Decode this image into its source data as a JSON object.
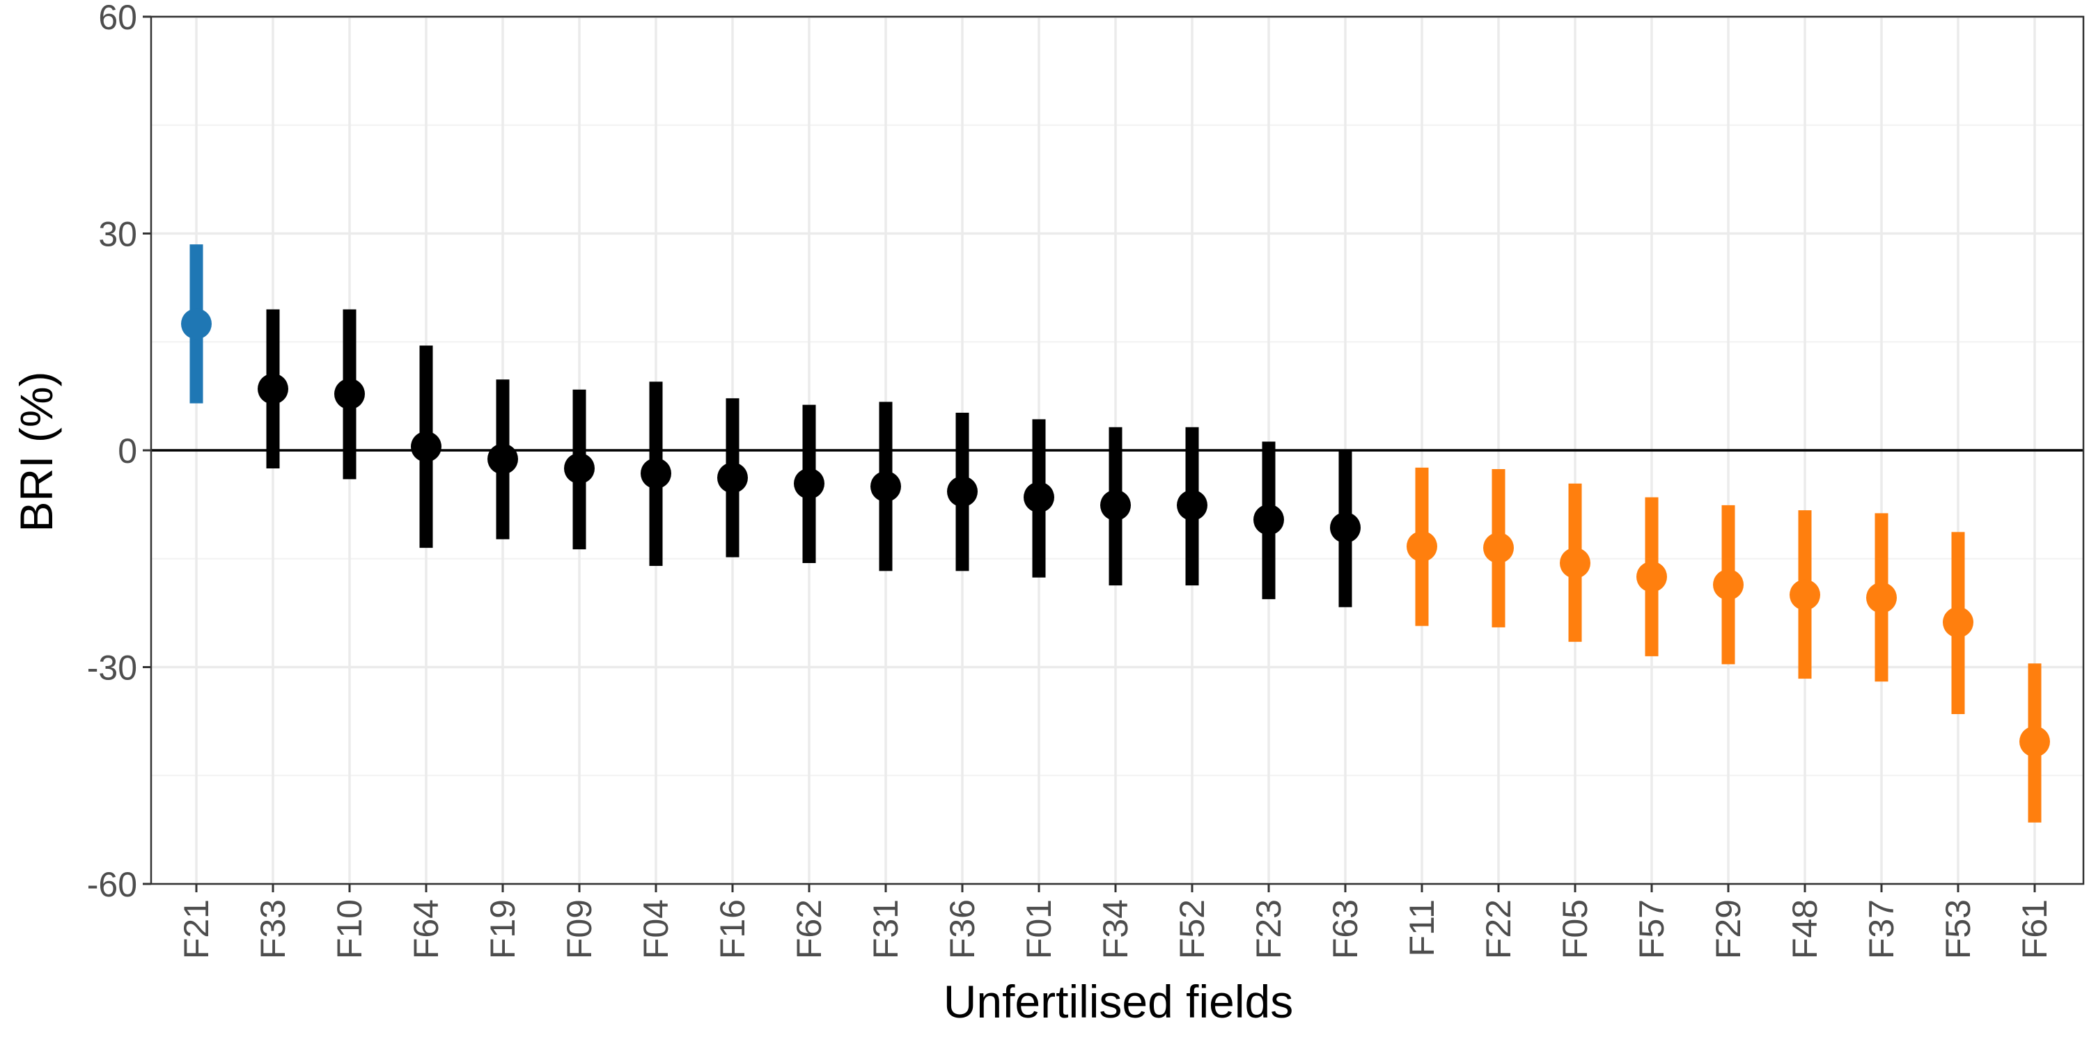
{
  "chart_data": {
    "type": "scatter",
    "xlabel": "Unfertilised fields",
    "ylabel": "BRI (%)",
    "ylim": [
      -60,
      60
    ],
    "yticks": [
      60,
      30,
      0,
      -30,
      -60
    ],
    "ytick_labels": [
      "60",
      "30",
      "0",
      "-30",
      "-60"
    ],
    "grid": true,
    "reference_line_y": 0,
    "colors": {
      "above": "#1f77b4",
      "neutral": "#000000",
      "below": "#ff7f0e"
    },
    "points": [
      {
        "field": "F21",
        "value": 17.5,
        "lower": 6.5,
        "upper": 28.5,
        "group": "above"
      },
      {
        "field": "F33",
        "value": 8.5,
        "lower": -2.5,
        "upper": 19.5,
        "group": "neutral"
      },
      {
        "field": "F10",
        "value": 7.8,
        "lower": -4.0,
        "upper": 19.5,
        "group": "neutral"
      },
      {
        "field": "F64",
        "value": 0.5,
        "lower": -13.5,
        "upper": 14.5,
        "group": "neutral"
      },
      {
        "field": "F19",
        "value": -1.2,
        "lower": -12.3,
        "upper": 9.8,
        "group": "neutral"
      },
      {
        "field": "F09",
        "value": -2.5,
        "lower": -13.7,
        "upper": 8.4,
        "group": "neutral"
      },
      {
        "field": "F04",
        "value": -3.2,
        "lower": -16.0,
        "upper": 9.5,
        "group": "neutral"
      },
      {
        "field": "F16",
        "value": -3.8,
        "lower": -14.8,
        "upper": 7.2,
        "group": "neutral"
      },
      {
        "field": "F62",
        "value": -4.6,
        "lower": -15.6,
        "upper": 6.3,
        "group": "neutral"
      },
      {
        "field": "F31",
        "value": -5.0,
        "lower": -16.7,
        "upper": 6.7,
        "group": "neutral"
      },
      {
        "field": "F36",
        "value": -5.7,
        "lower": -16.7,
        "upper": 5.2,
        "group": "neutral"
      },
      {
        "field": "F01",
        "value": -6.5,
        "lower": -17.6,
        "upper": 4.3,
        "group": "neutral"
      },
      {
        "field": "F34",
        "value": -7.6,
        "lower": -18.7,
        "upper": 3.2,
        "group": "neutral"
      },
      {
        "field": "F52",
        "value": -7.6,
        "lower": -18.7,
        "upper": 3.2,
        "group": "neutral"
      },
      {
        "field": "F23",
        "value": -9.6,
        "lower": -20.6,
        "upper": 1.2,
        "group": "neutral"
      },
      {
        "field": "F63",
        "value": -10.7,
        "lower": -21.7,
        "upper": 0.1,
        "group": "neutral"
      },
      {
        "field": "F11",
        "value": -13.3,
        "lower": -24.3,
        "upper": -2.4,
        "group": "below"
      },
      {
        "field": "F22",
        "value": -13.5,
        "lower": -24.5,
        "upper": -2.6,
        "group": "below"
      },
      {
        "field": "F05",
        "value": -15.6,
        "lower": -26.5,
        "upper": -4.6,
        "group": "below"
      },
      {
        "field": "F57",
        "value": -17.5,
        "lower": -28.5,
        "upper": -6.5,
        "group": "below"
      },
      {
        "field": "F29",
        "value": -18.6,
        "lower": -29.6,
        "upper": -7.6,
        "group": "below"
      },
      {
        "field": "F48",
        "value": -20.0,
        "lower": -31.6,
        "upper": -8.3,
        "group": "below"
      },
      {
        "field": "F37",
        "value": -20.4,
        "lower": -32.0,
        "upper": -8.7,
        "group": "below"
      },
      {
        "field": "F53",
        "value": -23.8,
        "lower": -36.5,
        "upper": -11.3,
        "group": "below"
      },
      {
        "field": "F61",
        "value": -40.3,
        "lower": -51.5,
        "upper": -29.5,
        "group": "below"
      }
    ]
  }
}
